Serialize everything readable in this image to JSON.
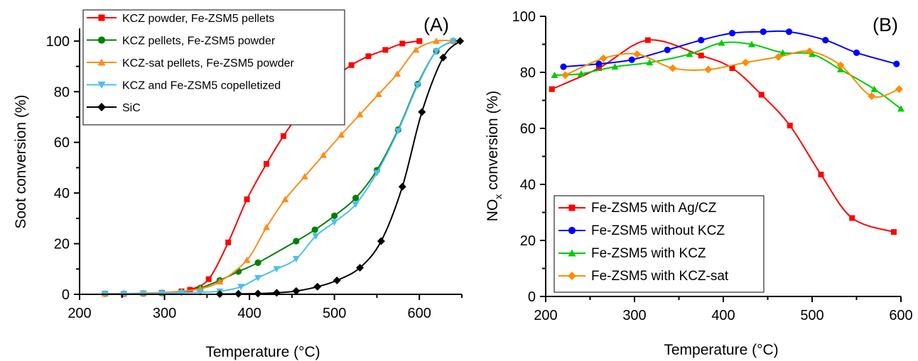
{
  "chart_data": [
    {
      "type": "line",
      "panel_label": "(A)",
      "xlabel": "Temperature (°C)",
      "ylabel": "Soot conversion (%)",
      "xlim": [
        200,
        650
      ],
      "ylim": [
        0,
        105
      ],
      "xticks": [
        200,
        300,
        400,
        500,
        600
      ],
      "yticks": [
        0,
        20,
        40,
        60,
        80,
        100
      ],
      "legend_position": "top-left",
      "series": [
        {
          "name": "KCZ powder, Fe-ZSM5 pellets",
          "color": "#ff0000",
          "marker": "square",
          "x": [
            230,
            252,
            275,
            297,
            320,
            330,
            352,
            375,
            397,
            420,
            440,
            460,
            480,
            500,
            520,
            540,
            560,
            580,
            600
          ],
          "y": [
            0.3,
            0.2,
            0.4,
            0.6,
            1.2,
            1.8,
            6,
            20.5,
            37.5,
            51.5,
            62.5,
            71.8,
            79,
            85.5,
            90.5,
            94,
            96.5,
            99,
            100
          ]
        },
        {
          "name": "KCZ pellets, Fe-ZSM5 powder",
          "color": "#008000",
          "marker": "circle",
          "x": [
            230,
            252,
            275,
            297,
            320,
            342,
            365,
            387,
            410,
            455,
            477,
            500,
            525,
            550,
            575,
            598,
            620,
            640
          ],
          "y": [
            0.2,
            0.2,
            0.3,
            0.5,
            0.9,
            2.5,
            5.5,
            9,
            12.5,
            21,
            25.5,
            31,
            38,
            49,
            65,
            83,
            96,
            100
          ]
        },
        {
          "name": "KCZ-sat pellets, Fe-ZSM5 powder",
          "color": "#ff8c1a",
          "marker": "triangle-up",
          "x": [
            230,
            252,
            275,
            297,
            320,
            342,
            365,
            397,
            420,
            442,
            465,
            487,
            508,
            530,
            552,
            574,
            596,
            620,
            640
          ],
          "y": [
            0.2,
            0.3,
            0.5,
            0.7,
            1.2,
            2.2,
            5,
            13.5,
            26.5,
            37.5,
            46.5,
            55,
            63,
            71,
            79,
            87,
            96.5,
            100,
            100
          ]
        },
        {
          "name": "KCZ and Fe-ZSM5 copelletized",
          "color": "#4dbeee",
          "marker": "triangle-down",
          "x": [
            230,
            252,
            275,
            297,
            320,
            342,
            365,
            390,
            410,
            432,
            455,
            478,
            500,
            525,
            550,
            575,
            598,
            620,
            640
          ],
          "y": [
            0.2,
            0.2,
            0.3,
            0.4,
            0.6,
            0.8,
            1.2,
            3,
            6.5,
            10,
            14,
            23,
            28.5,
            35.5,
            48,
            64.5,
            82.5,
            96,
            100
          ]
        },
        {
          "name": "SiC",
          "color": "#000000",
          "marker": "diamond",
          "x": [
            365,
            387,
            410,
            432,
            455,
            480,
            503,
            530,
            555,
            580,
            603,
            628,
            648
          ],
          "y": [
            0.1,
            0.2,
            0.3,
            0.6,
            1.3,
            3,
            5.5,
            10.5,
            21,
            42.5,
            72,
            93.5,
            100
          ]
        }
      ]
    },
    {
      "type": "line",
      "panel_label": "(B)",
      "xlabel": "Temperature (°C)",
      "ylabel_main": "NO",
      "ylabel_sub": "x",
      "ylabel_rest": " conversion (%)",
      "xlim": [
        200,
        600
      ],
      "ylim": [
        0,
        100
      ],
      "xticks": [
        200,
        300,
        400,
        500,
        600
      ],
      "yticks": [
        0,
        20,
        40,
        60,
        80,
        100
      ],
      "legend_position": "bottom-left",
      "series": [
        {
          "name": "Fe-ZSM5 with Ag/CZ",
          "color": "#ff0000",
          "marker": "square",
          "x": [
            207,
            260,
            315,
            375,
            410,
            443,
            475,
            510,
            545,
            592
          ],
          "y": [
            74,
            81.5,
            91.5,
            86,
            81.5,
            72,
            61,
            43.5,
            28,
            23
          ]
        },
        {
          "name": "Fe-ZSM5 without KCZ",
          "color": "#0000ff",
          "marker": "circle",
          "x": [
            220,
            260,
            297,
            337,
            375,
            410,
            445,
            474,
            515,
            550,
            595
          ],
          "y": [
            82,
            83,
            84.5,
            88,
            91.5,
            94,
            94.5,
            94.5,
            91.5,
            87,
            83
          ]
        },
        {
          "name": "Fe-ZSM5 with KCZ",
          "color": "#00cc00",
          "marker": "triangle-up",
          "x": [
            210,
            240,
            278,
            317,
            362,
            398,
            432,
            467,
            500,
            532,
            570,
            600
          ],
          "y": [
            79,
            79.5,
            82,
            83.5,
            86.5,
            90.5,
            90,
            87,
            86.5,
            81,
            74,
            67
          ]
        },
        {
          "name": "Fe-ZSM5 with KCZ-sat",
          "color": "#ff8c00",
          "marker": "diamond",
          "x": [
            222,
            265,
            303,
            343,
            383,
            425,
            462,
            497,
            532,
            567,
            598
          ],
          "y": [
            79,
            85,
            86.5,
            81.5,
            81,
            83.5,
            85.5,
            87.5,
            82.5,
            71.5,
            74
          ]
        }
      ]
    }
  ]
}
